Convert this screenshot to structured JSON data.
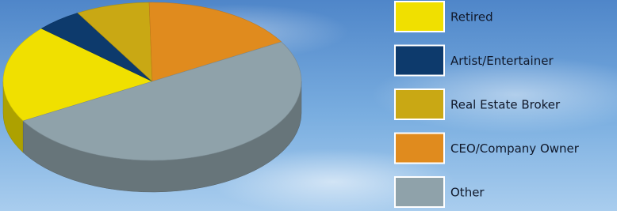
{
  "chart_data": {
    "type": "pie",
    "categories": [
      "Retired",
      "Artist/Entertainer",
      "Real Estate Broker",
      "CEO/Company Owner",
      "Other"
    ],
    "values": [
      20,
      5,
      8,
      17,
      50
    ],
    "colors": [
      "#f0e000",
      "#0d3a6c",
      "#c9a814",
      "#e08b1e",
      "#8fa2aa"
    ],
    "legend": "right"
  }
}
